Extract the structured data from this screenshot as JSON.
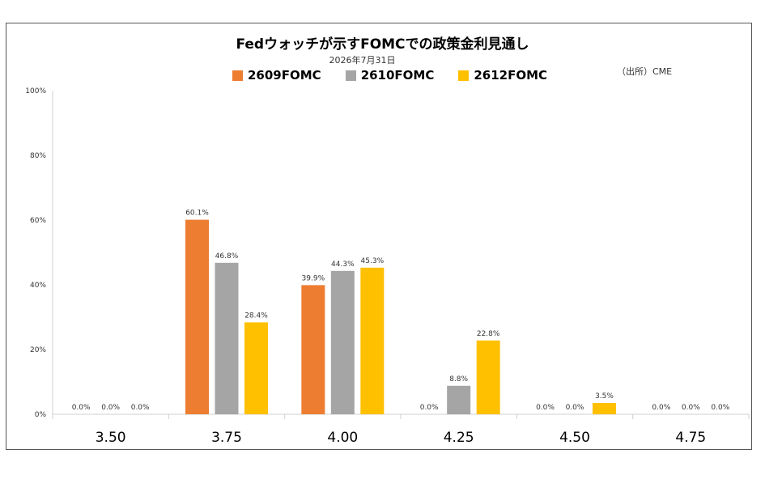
{
  "chart_data": {
    "type": "bar",
    "title": "Fedウォッチが示すFOMCでの政策金利見通し",
    "subtitle": "2026年7月31日",
    "source": "（出所）CME",
    "categories": [
      "3.50",
      "3.75",
      "4.00",
      "4.25",
      "4.50",
      "4.75"
    ],
    "series": [
      {
        "name": "2609FOMC",
        "color": "#ED7D31",
        "values": [
          0.0,
          60.1,
          39.9,
          0.0,
          0.0,
          0.0
        ]
      },
      {
        "name": "2610FOMC",
        "color": "#A5A5A5",
        "values": [
          0.0,
          46.8,
          44.3,
          8.8,
          0.0,
          0.0
        ]
      },
      {
        "name": "2612FOMC",
        "color": "#FFC000",
        "values": [
          0.0,
          28.4,
          45.3,
          22.8,
          3.5,
          0.0
        ]
      }
    ],
    "yticks": [
      "0%",
      "20%",
      "40%",
      "60%",
      "80%",
      "100%"
    ],
    "ylim": [
      0,
      100
    ],
    "value_suffix": "%",
    "grid": false,
    "legend": "top"
  }
}
